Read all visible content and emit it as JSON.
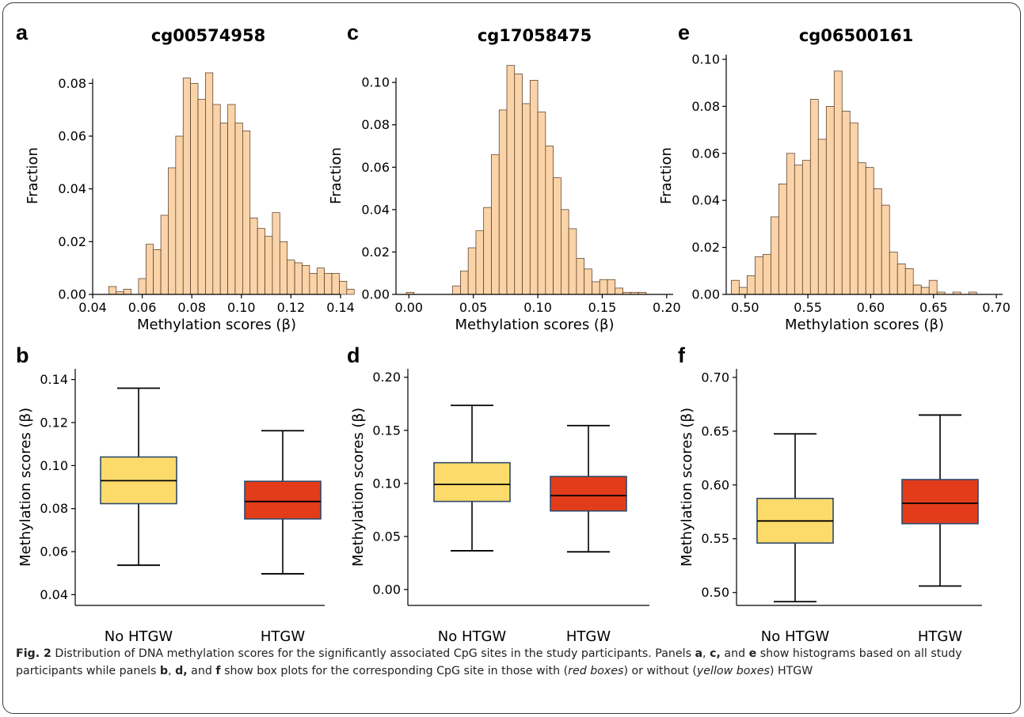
{
  "chart_data": [
    {
      "panel": "a",
      "type": "bar",
      "title": "cg00574958",
      "xlabel": "Methylation scores (β)",
      "ylabel": "Fraction",
      "xlim": [
        0.04,
        0.14
      ],
      "ylim": [
        0,
        0.09
      ],
      "xticks": [
        0.04,
        0.06,
        0.08,
        0.1,
        0.12,
        0.14
      ],
      "xtick_labels": [
        "0.04",
        "0.06",
        "0.08",
        "0.10",
        "0.12",
        "0.14"
      ],
      "yticks": [
        0,
        0.02,
        0.04,
        0.06,
        0.08
      ],
      "ytick_labels": [
        "0.00",
        "0.02",
        "0.04",
        "0.06",
        "0.08"
      ],
      "bin_start": 0.0465,
      "bin_width": 0.003,
      "values": [
        0.003,
        0.001,
        0.002,
        0.0,
        0.006,
        0.019,
        0.017,
        0.03,
        0.048,
        0.06,
        0.082,
        0.08,
        0.074,
        0.084,
        0.072,
        0.065,
        0.072,
        0.065,
        0.062,
        0.029,
        0.025,
        0.022,
        0.031,
        0.02,
        0.013,
        0.012,
        0.011,
        0.008,
        0.01,
        0.008,
        0.008,
        0.005,
        0.002
      ],
      "color": "#fbd3a8",
      "edge": "#4a3420"
    },
    {
      "panel": "c",
      "type": "bar",
      "title": "cg17058475",
      "xlabel": "Methylation scores (β)",
      "ylabel": "Fraction",
      "xlim": [
        -0.01,
        0.205
      ],
      "ylim": [
        0,
        0.112
      ],
      "xticks": [
        0.0,
        0.05,
        0.1,
        0.15,
        0.2
      ],
      "xtick_labels": [
        "0.00",
        "0.05",
        "0.10",
        "0.15",
        "0.20"
      ],
      "yticks": [
        0,
        0.02,
        0.04,
        0.06,
        0.08,
        0.1
      ],
      "ytick_labels": [
        "0.00",
        "0.02",
        "0.04",
        "0.06",
        "0.08",
        "0.10"
      ],
      "bin_start": -0.002,
      "bin_width": 0.006,
      "values": [
        0.001,
        0,
        0,
        0,
        0,
        0,
        0.004,
        0.011,
        0.022,
        0.03,
        0.041,
        0.066,
        0.087,
        0.108,
        0.104,
        0.09,
        0.101,
        0.086,
        0.07,
        0.055,
        0.04,
        0.031,
        0.017,
        0.012,
        0.006,
        0.007,
        0.007,
        0.003,
        0.001,
        0.001,
        0.001
      ],
      "color": "#fbd3a8",
      "edge": "#4a3420"
    },
    {
      "panel": "e",
      "type": "bar",
      "title": "cg06500161",
      "xlabel": "Methylation scores (β)",
      "ylabel": "Fraction",
      "xlim": [
        0.485,
        0.705
      ],
      "ylim": [
        0,
        0.101
      ],
      "xticks": [
        0.5,
        0.55,
        0.6,
        0.65,
        0.7
      ],
      "xtick_labels": [
        "0.50",
        "0.55",
        "0.60",
        "0.65",
        "0.70"
      ],
      "yticks": [
        0,
        0.02,
        0.04,
        0.06,
        0.08,
        0.1
      ],
      "ytick_labels": [
        "0.00",
        "0.02",
        "0.04",
        "0.06",
        "0.08",
        "0.10"
      ],
      "bin_start": 0.489,
      "bin_width": 0.0063,
      "values": [
        0.006,
        0.003,
        0.008,
        0.016,
        0.017,
        0.033,
        0.047,
        0.06,
        0.055,
        0.057,
        0.083,
        0.066,
        0.08,
        0.095,
        0.078,
        0.073,
        0.056,
        0.054,
        0.045,
        0.038,
        0.018,
        0.013,
        0.011,
        0.004,
        0.003,
        0.006,
        0.001,
        0,
        0.001,
        0,
        0.001
      ],
      "color": "#fbd3a8",
      "edge": "#4a3420"
    },
    {
      "panel": "b",
      "type": "box",
      "ylabel": "Methylation scores (β)",
      "ylim": [
        0.035,
        0.145
      ],
      "yticks": [
        0.04,
        0.06,
        0.08,
        0.1,
        0.12,
        0.14
      ],
      "ytick_labels": [
        "0.04",
        "0.06",
        "0.08",
        "0.10",
        "0.12",
        "0.14"
      ],
      "categories": [
        "No HTGW",
        "HTGW"
      ],
      "boxes": [
        {
          "min": 0.0537,
          "q1": 0.0823,
          "median": 0.093,
          "q3": 0.104,
          "max": 0.136,
          "color": "#fddb6b"
        },
        {
          "min": 0.0497,
          "q1": 0.0752,
          "median": 0.0833,
          "q3": 0.0927,
          "max": 0.1162,
          "color": "#e23c1b"
        }
      ]
    },
    {
      "panel": "d",
      "type": "box",
      "ylabel": "Methylation scores (β)",
      "ylim": [
        -0.015,
        0.208
      ],
      "yticks": [
        0.0,
        0.05,
        0.1,
        0.15,
        0.2
      ],
      "ytick_labels": [
        "0.00",
        "0.05",
        "0.10",
        "0.15",
        "0.20"
      ],
      "categories": [
        "No HTGW",
        "HTGW"
      ],
      "boxes": [
        {
          "min": 0.0365,
          "q1": 0.083,
          "median": 0.099,
          "q3": 0.1195,
          "max": 0.1735,
          "color": "#fddb6b"
        },
        {
          "min": 0.0355,
          "q1": 0.074,
          "median": 0.0885,
          "q3": 0.1065,
          "max": 0.1545,
          "color": "#e23c1b"
        }
      ]
    },
    {
      "panel": "f",
      "type": "box",
      "ylabel": "Methylation scores (β)",
      "ylim": [
        0.488,
        0.708
      ],
      "yticks": [
        0.5,
        0.55,
        0.6,
        0.65,
        0.7
      ],
      "ytick_labels": [
        "0.50",
        "0.55",
        "0.60",
        "0.65",
        "0.70"
      ],
      "categories": [
        "No HTGW",
        "HTGW"
      ],
      "boxes": [
        {
          "min": 0.4915,
          "q1": 0.546,
          "median": 0.5665,
          "q3": 0.5875,
          "max": 0.6475,
          "color": "#fddb6b"
        },
        {
          "min": 0.506,
          "q1": 0.564,
          "median": 0.583,
          "q3": 0.605,
          "max": 0.665,
          "color": "#e23c1b"
        }
      ]
    }
  ],
  "panel_letters": {
    "a": "a",
    "b": "b",
    "c": "c",
    "d": "d",
    "e": "e",
    "f": "f"
  },
  "caption": {
    "fig_label": "Fig. 2",
    "part1": " Distribution of DNA methylation scores for the significantly associated CpG sites in the study participants. Panels ",
    "l_a": "a",
    "sep1": ", ",
    "l_c": "c,",
    "and1": " and ",
    "l_e": "e",
    "part2": " show histograms based on all study participants while panels ",
    "l_b": "b",
    "sep2": ", ",
    "l_d": "d,",
    "and2": " and ",
    "l_f": "f",
    "part3": " show box plots for the corresponding CpG site in those with (",
    "red_boxes": "red boxes",
    "part4": ") or without (",
    "yellow_boxes": "yellow boxes",
    "part5": ") HTGW"
  }
}
